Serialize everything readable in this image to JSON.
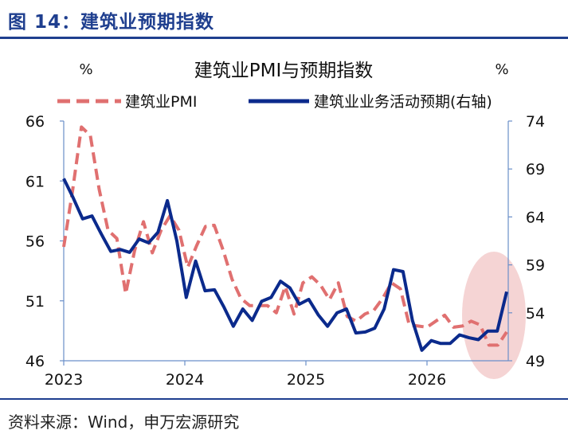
{
  "figure_title": "图 14：建筑业预期指数",
  "source": "资料来源：Wind，申万宏源研究",
  "colors": {
    "brand_blue": "#1f3f8f",
    "pmi": "#e07070",
    "expectation": "#0b2a8c",
    "highlight": "#f3cccc",
    "axis": "#6a8fc9"
  },
  "chart_data": {
    "type": "line",
    "title": "建筑业PMI与预期指数",
    "left_unit": "%",
    "right_unit": "%",
    "x_ticks": [
      "2023",
      "2024",
      "2025",
      "2026"
    ],
    "y_left": {
      "ticks": [
        66,
        61,
        56,
        51,
        46
      ],
      "ylim": [
        46,
        66
      ]
    },
    "y_right": {
      "ticks": [
        74,
        69,
        64,
        59,
        54,
        49
      ],
      "ylim": [
        49,
        74
      ]
    },
    "grid": false,
    "legend_position": "top",
    "highlight": "shaded ellipse over latest readings",
    "series": [
      {
        "name": "建筑业PMI",
        "axis": "left",
        "style": "dashed",
        "values": [
          55.5,
          60.2,
          65.5,
          64.8,
          60.3,
          56.9,
          56.2,
          51.6,
          55.2,
          57.6,
          55.0,
          56.9,
          58.1,
          56.9,
          53.8,
          55.6,
          57.2,
          57.3,
          55.2,
          52.8,
          51.2,
          50.6,
          50.6,
          50.6,
          50.0,
          52.2,
          49.9,
          52.5,
          53.0,
          52.3,
          51.1,
          52.5,
          49.7,
          49.3,
          49.9,
          50.2,
          51.2,
          52.5,
          52.0,
          49.0,
          48.9,
          48.8,
          49.3,
          49.8,
          48.8,
          48.9,
          49.3,
          49.0,
          47.3,
          47.3,
          48.4
        ]
      },
      {
        "name": "建筑业业务活动预期(右轴)",
        "axis": "right",
        "values": [
          68.0,
          66.0,
          63.8,
          64.1,
          62.2,
          60.4,
          60.6,
          60.3,
          61.7,
          61.3,
          62.4,
          65.7,
          61.5,
          55.6,
          59.4,
          56.3,
          56.4,
          54.6,
          52.6,
          54.4,
          53.2,
          55.2,
          55.6,
          57.3,
          56.6,
          54.9,
          55.4,
          53.8,
          52.6,
          54.0,
          54.4,
          51.9,
          52.0,
          52.4,
          54.4,
          58.5,
          58.3,
          53.2,
          50.1,
          51.1,
          50.8,
          50.8,
          51.7,
          51.4,
          51.2,
          52.1,
          52.1,
          56.2
        ]
      }
    ]
  }
}
